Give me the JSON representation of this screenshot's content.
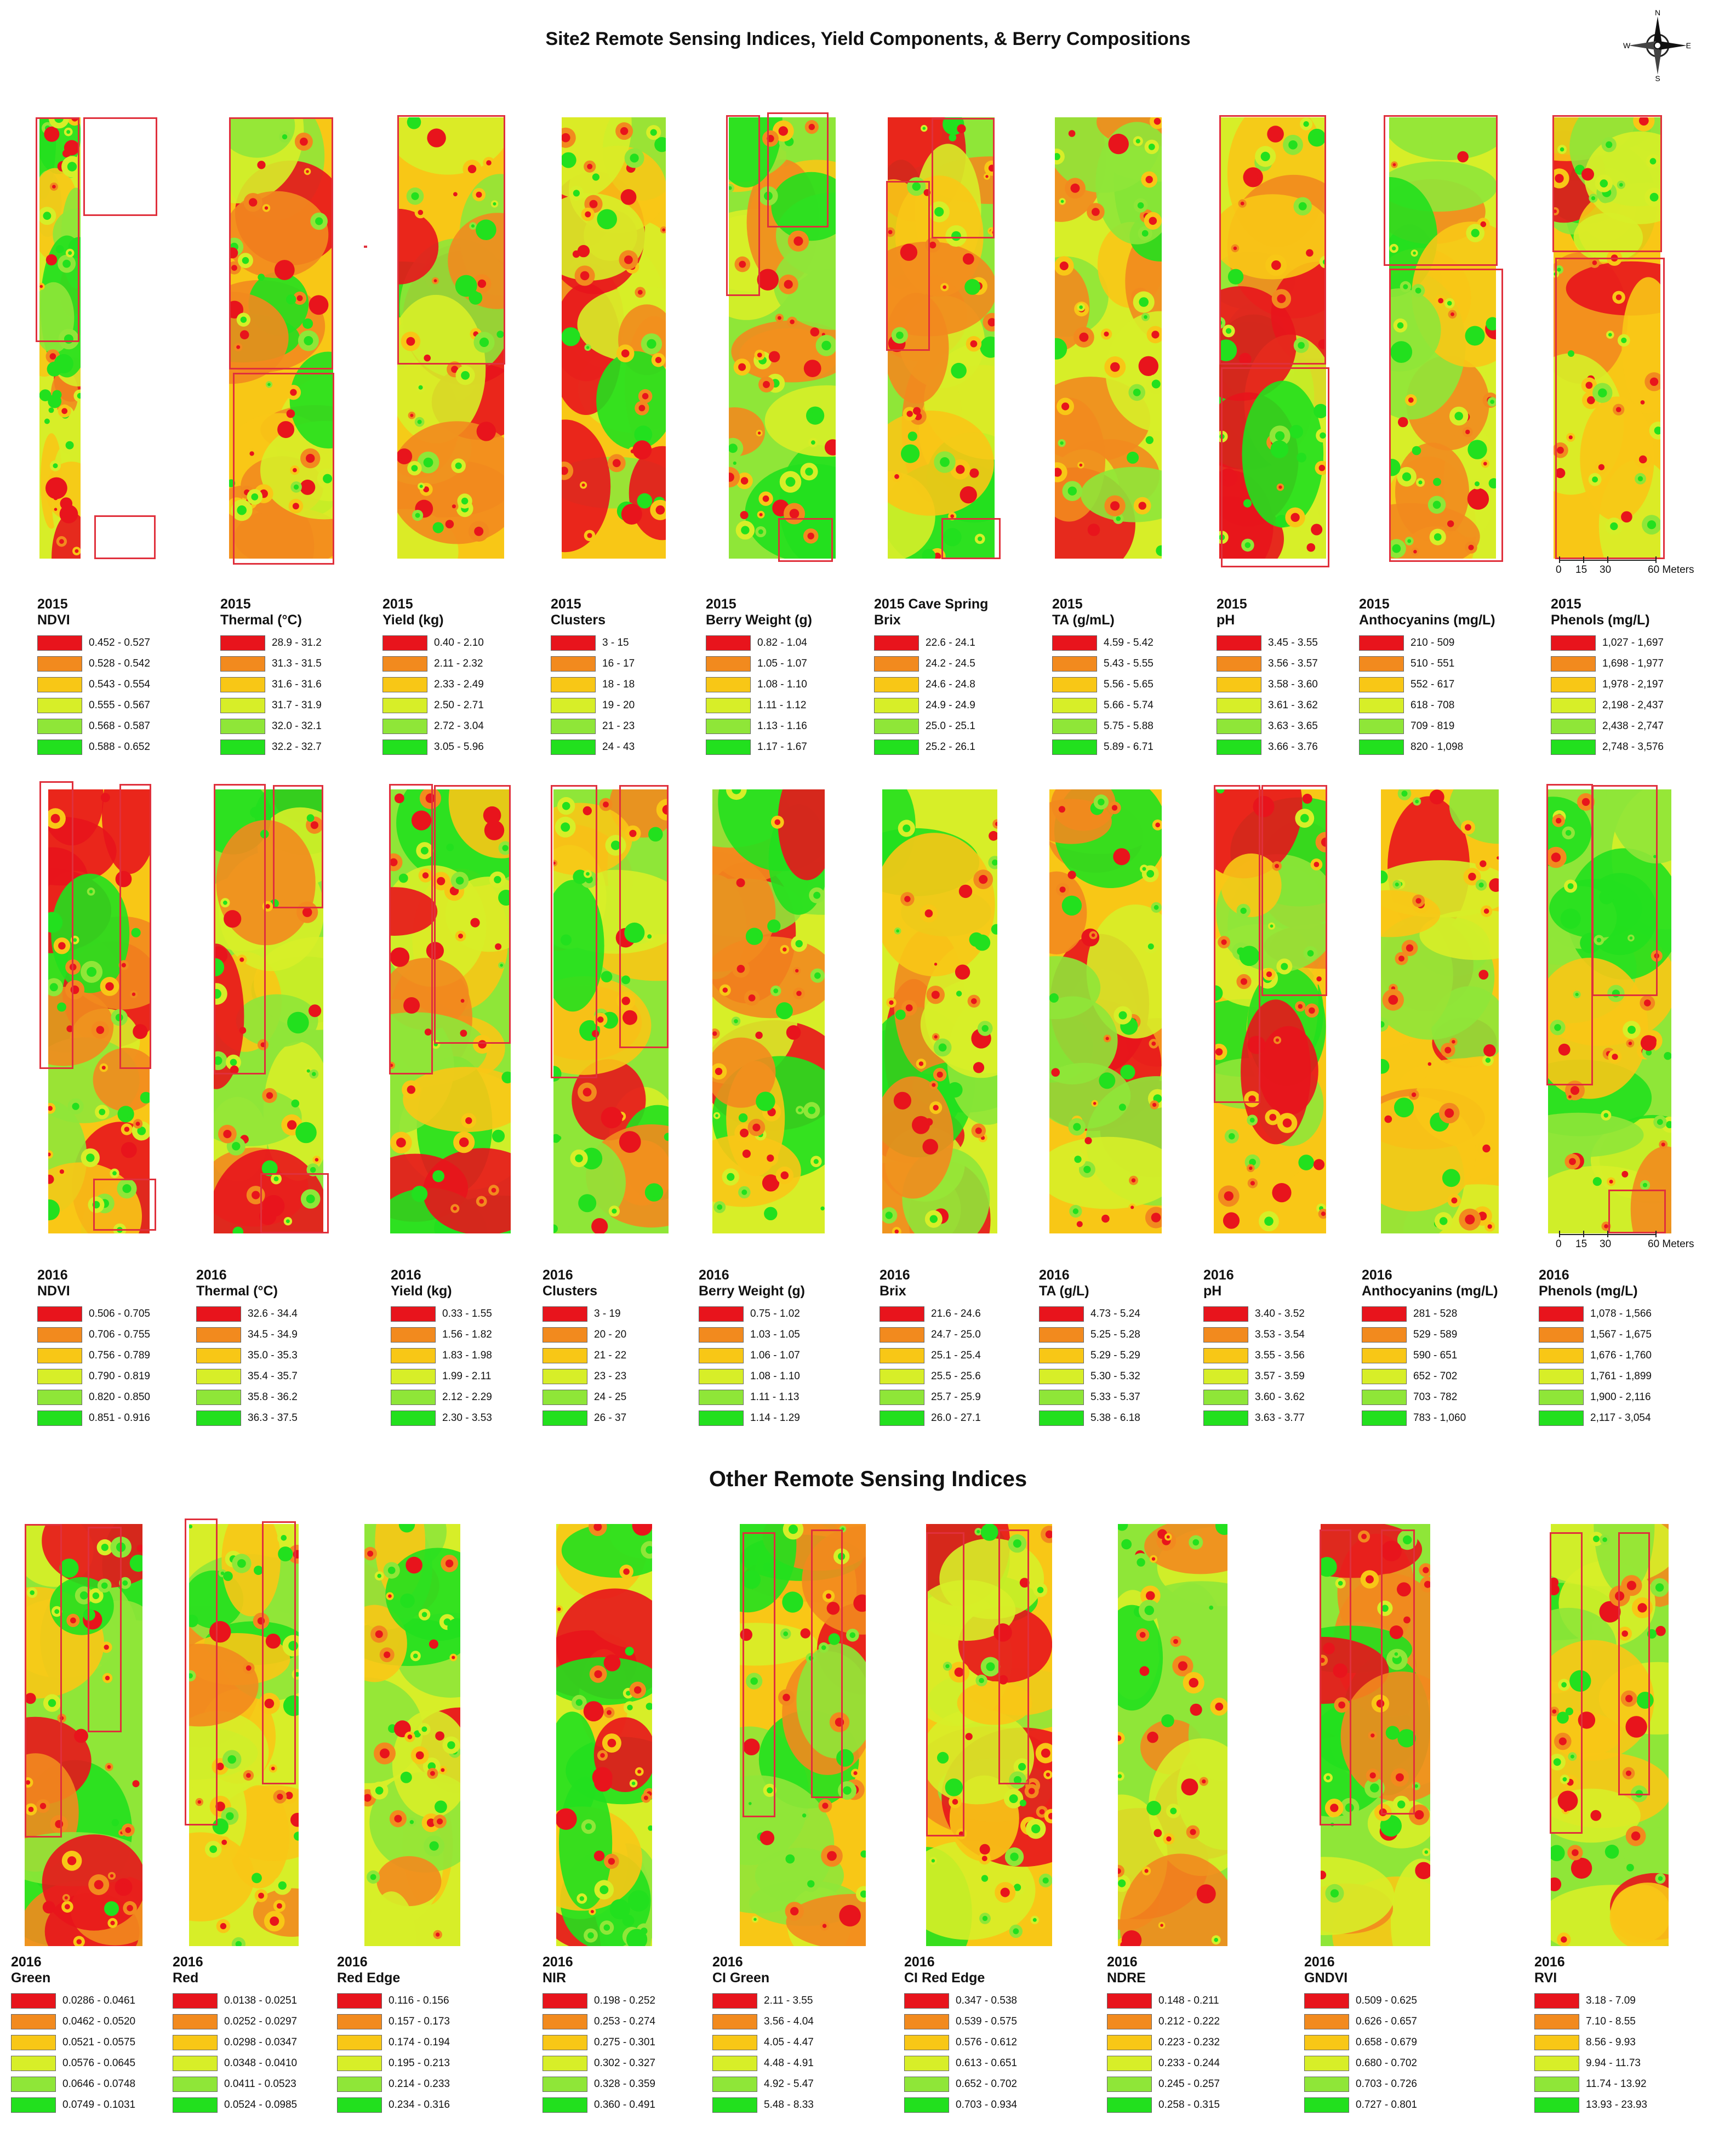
{
  "titles": {
    "main": "Site2 Remote Sensing Indices, Yield Components, & Berry Compositions",
    "other": "Other Remote Sensing Indices"
  },
  "compass": {
    "n": "N",
    "s": "S",
    "e": "E",
    "w": "W"
  },
  "scalebar": {
    "zero": "0",
    "mid1": "15",
    "mid2": "30",
    "end": "60 Meters"
  },
  "colors": [
    "#e8141c",
    "#f28a1e",
    "#f8c716",
    "#d7ee28",
    "#8fe638",
    "#22e01e"
  ],
  "row2015": [
    {
      "year": "2015",
      "name": "NDVI",
      "ranges": [
        "0.452 - 0.527",
        "0.528 - 0.542",
        "0.543 - 0.554",
        "0.555 - 0.567",
        "0.568 - 0.587",
        "0.588 - 0.652"
      ]
    },
    {
      "year": "2015",
      "name": "Thermal (°C)",
      "ranges": [
        "28.9 - 31.2",
        "31.3 - 31.5",
        "31.6 - 31.6",
        "31.7 - 31.9",
        "32.0 - 32.1",
        "32.2 - 32.7"
      ]
    },
    {
      "year": "2015",
      "name": "Yield (kg)",
      "ranges": [
        "0.40 - 2.10",
        "2.11 - 2.32",
        "2.33 - 2.49",
        "2.50 - 2.71",
        "2.72 - 3.04",
        "3.05 - 5.96"
      ]
    },
    {
      "year": "2015",
      "name": "Clusters",
      "ranges": [
        "3 - 15",
        "16 - 17",
        "18 - 18",
        "19 - 20",
        "21 - 23",
        "24 - 43"
      ]
    },
    {
      "year": "2015",
      "name": "Berry Weight (g)",
      "ranges": [
        "0.82 - 1.04",
        "1.05 - 1.07",
        "1.08 - 1.10",
        "1.11 - 1.12",
        "1.13 - 1.16",
        "1.17 - 1.67"
      ]
    },
    {
      "year": "2015 Cave Spring",
      "name": "Brix",
      "ranges": [
        "22.6 - 24.1",
        "24.2 - 24.5",
        "24.6 - 24.8",
        "24.9 - 24.9",
        "25.0 - 25.1",
        "25.2 - 26.1"
      ]
    },
    {
      "year": "2015",
      "name": "TA (g/mL)",
      "ranges": [
        "4.59 - 5.42",
        "5.43 - 5.55",
        "5.56 - 5.65",
        "5.66 - 5.74",
        "5.75 - 5.88",
        "5.89 - 6.71"
      ]
    },
    {
      "year": "2015",
      "name": "pH",
      "ranges": [
        "3.45 - 3.55",
        "3.56 - 3.57",
        "3.58 - 3.60",
        "3.61 - 3.62",
        "3.63 - 3.65",
        "3.66 - 3.76"
      ]
    },
    {
      "year": "2015",
      "name": "Anthocyanins (mg/L)",
      "ranges": [
        "210 - 509",
        "510 - 551",
        "552 - 617",
        "618 - 708",
        "709 - 819",
        "820 - 1,098"
      ]
    },
    {
      "year": "2015",
      "name": "Phenols (mg/L)",
      "ranges": [
        "1,027 - 1,697",
        "1,698 - 1,977",
        "1,978 - 2,197",
        "2,198 - 2,437",
        "2,438 - 2,747",
        "2,748 - 3,576"
      ]
    }
  ],
  "row2016": [
    {
      "year": "2016",
      "name": "NDVI",
      "ranges": [
        "0.506 - 0.705",
        "0.706 - 0.755",
        "0.756 - 0.789",
        "0.790 - 0.819",
        "0.820 - 0.850",
        "0.851 - 0.916"
      ]
    },
    {
      "year": "2016",
      "name": "Thermal (°C)",
      "ranges": [
        "32.6 - 34.4",
        "34.5 - 34.9",
        "35.0 - 35.3",
        "35.4 - 35.7",
        "35.8 - 36.2",
        "36.3 - 37.5"
      ]
    },
    {
      "year": "2016",
      "name": "Yield (kg)",
      "ranges": [
        "0.33 - 1.55",
        "1.56 - 1.82",
        "1.83 - 1.98",
        "1.99 - 2.11",
        "2.12 - 2.29",
        "2.30 - 3.53"
      ]
    },
    {
      "year": "2016",
      "name": "Clusters",
      "ranges": [
        "3 - 19",
        "20 - 20",
        "21 - 22",
        "23 - 23",
        "24 - 25",
        "26 - 37"
      ]
    },
    {
      "year": "2016",
      "name": "Berry Weight (g)",
      "ranges": [
        "0.75 - 1.02",
        "1.03 - 1.05",
        "1.06 - 1.07",
        "1.08 - 1.10",
        "1.11 - 1.13",
        "1.14 - 1.29"
      ]
    },
    {
      "year": "2016",
      "name": "Brix",
      "ranges": [
        "21.6 - 24.6",
        "24.7 - 25.0",
        "25.1 - 25.4",
        "25.5 - 25.6",
        "25.7 - 25.9",
        "26.0 - 27.1"
      ]
    },
    {
      "year": "2016",
      "name": "TA (g/L)",
      "ranges": [
        "4.73 - 5.24",
        "5.25 - 5.28",
        "5.29 - 5.29",
        "5.30 - 5.32",
        "5.33 - 5.37",
        "5.38 - 6.18"
      ]
    },
    {
      "year": "2016",
      "name": "pH",
      "ranges": [
        "3.40 - 3.52",
        "3.53 - 3.54",
        "3.55 - 3.56",
        "3.57 - 3.59",
        "3.60 - 3.62",
        "3.63 - 3.77"
      ]
    },
    {
      "year": "2016",
      "name": "Anthocyanins (mg/L)",
      "ranges": [
        "281 - 528",
        "529 - 589",
        "590 - 651",
        "652 - 702",
        "703 - 782",
        "783 - 1,060"
      ]
    },
    {
      "year": "2016",
      "name": "Phenols (mg/L)",
      "ranges": [
        "1,078 - 1,566",
        "1,567 - 1,675",
        "1,676 - 1,760",
        "1,761 - 1,899",
        "1,900 - 2,116",
        "2,117 - 3,054"
      ]
    }
  ],
  "row_other": [
    {
      "year": "2016",
      "name": "Green",
      "ranges": [
        "0.0286 - 0.0461",
        "0.0462 - 0.0520",
        "0.0521 - 0.0575",
        "0.0576 - 0.0645",
        "0.0646 - 0.0748",
        "0.0749 - 0.1031"
      ]
    },
    {
      "year": "2016",
      "name": "Red",
      "ranges": [
        "0.0138 - 0.0251",
        "0.0252 - 0.0297",
        "0.0298 - 0.0347",
        "0.0348 - 0.0410",
        "0.0411 - 0.0523",
        "0.0524 - 0.0985"
      ]
    },
    {
      "year": "2016",
      "name": "Red Edge",
      "ranges": [
        "0.116 - 0.156",
        "0.157 - 0.173",
        "0.174 - 0.194",
        "0.195 - 0.213",
        "0.214 - 0.233",
        "0.234 - 0.316"
      ]
    },
    {
      "year": "2016",
      "name": "NIR",
      "ranges": [
        "0.198 - 0.252",
        "0.253 - 0.274",
        "0.275 - 0.301",
        "0.302 - 0.327",
        "0.328 - 0.359",
        "0.360 - 0.491"
      ]
    },
    {
      "year": "2016",
      "name": "CI Green",
      "ranges": [
        "2.11 - 3.55",
        "3.56 - 4.04",
        "4.05 - 4.47",
        "4.48 - 4.91",
        "4.92 - 5.47",
        "5.48 - 8.33"
      ]
    },
    {
      "year": "2016",
      "name": "CI Red Edge",
      "ranges": [
        "0.347 - 0.538",
        "0.539 - 0.575",
        "0.576 - 0.612",
        "0.613 - 0.651",
        "0.652 - 0.702",
        "0.703 - 0.934"
      ]
    },
    {
      "year": "2016",
      "name": "NDRE",
      "ranges": [
        "0.148 - 0.211",
        "0.212 - 0.222",
        "0.223 - 0.232",
        "0.233 - 0.244",
        "0.245 - 0.257",
        "0.258 - 0.315"
      ]
    },
    {
      "year": "2016",
      "name": "GNDVI",
      "ranges": [
        "0.509 - 0.625",
        "0.626 - 0.657",
        "0.658 - 0.679",
        "0.680 - 0.702",
        "0.703 - 0.726",
        "0.727 - 0.801"
      ]
    },
    {
      "year": "2016",
      "name": "RVI",
      "ranges": [
        "3.18 - 7.09",
        "7.10 - 8.55",
        "8.56 - 9.93",
        "9.94 - 11.73",
        "11.74 - 13.92",
        "13.93 - 23.93"
      ]
    }
  ]
}
